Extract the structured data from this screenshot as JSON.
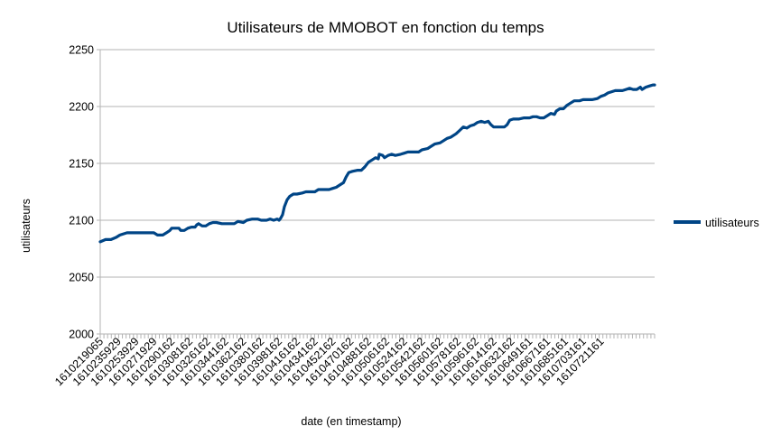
{
  "chart_data": {
    "type": "line",
    "title": "Utilisateurs de MMOBOT en fonction du temps",
    "xlabel": "date (en timestamp)",
    "ylabel": "utilisateurs",
    "ylim": [
      2000,
      2250
    ],
    "yticks": [
      2000,
      2050,
      2100,
      2150,
      2200,
      2250
    ],
    "grid": "horizontal",
    "legend_position": "right",
    "x_tick_labels": [
      "1610219065",
      "1610235929",
      "1610253929",
      "1610271929",
      "1610290162",
      "1610308162",
      "1610326162",
      "1610344162",
      "1610362162",
      "1610380162",
      "1610398162",
      "1610416162",
      "1610434162",
      "1610452162",
      "1610470162",
      "1610488162",
      "1610506162",
      "1610524162",
      "1610542162",
      "1610560162",
      "1610578162",
      "1610596162",
      "1610614162",
      "1610632162",
      "1610649161",
      "1610667161",
      "1610685161",
      "1610703161",
      "1610721161"
    ],
    "series": [
      {
        "name": "utilisateurs",
        "color": "#004586",
        "points": [
          [
            0,
            2081
          ],
          [
            0.3,
            2083
          ],
          [
            0.6,
            2083
          ],
          [
            0.9,
            2085
          ],
          [
            1.1,
            2087
          ],
          [
            1.3,
            2088
          ],
          [
            1.5,
            2089
          ],
          [
            1.8,
            2089
          ],
          [
            2.0,
            2089
          ],
          [
            2.5,
            2089
          ],
          [
            3.0,
            2089
          ],
          [
            3.2,
            2087
          ],
          [
            3.5,
            2087
          ],
          [
            3.7,
            2089
          ],
          [
            3.9,
            2091
          ],
          [
            4.0,
            2093
          ],
          [
            4.2,
            2093
          ],
          [
            4.4,
            2093
          ],
          [
            4.5,
            2091
          ],
          [
            4.7,
            2091
          ],
          [
            4.9,
            2093
          ],
          [
            5.1,
            2094
          ],
          [
            5.3,
            2094
          ],
          [
            5.4,
            2096
          ],
          [
            5.5,
            2097
          ],
          [
            5.7,
            2095
          ],
          [
            5.9,
            2095
          ],
          [
            6.1,
            2097
          ],
          [
            6.3,
            2098
          ],
          [
            6.5,
            2098
          ],
          [
            6.8,
            2097
          ],
          [
            7.2,
            2097
          ],
          [
            7.5,
            2097
          ],
          [
            7.7,
            2099
          ],
          [
            8.0,
            2098
          ],
          [
            8.2,
            2100
          ],
          [
            8.5,
            2101
          ],
          [
            8.8,
            2101
          ],
          [
            9.0,
            2100
          ],
          [
            9.3,
            2100
          ],
          [
            9.5,
            2101
          ],
          [
            9.7,
            2100
          ],
          [
            9.9,
            2101
          ],
          [
            10.0,
            2100
          ],
          [
            10.1,
            2102
          ],
          [
            10.2,
            2105
          ],
          [
            10.3,
            2112
          ],
          [
            10.45,
            2118
          ],
          [
            10.6,
            2121
          ],
          [
            10.8,
            2123
          ],
          [
            11.0,
            2123
          ],
          [
            11.3,
            2124
          ],
          [
            11.5,
            2125
          ],
          [
            11.8,
            2125
          ],
          [
            12.0,
            2125
          ],
          [
            12.2,
            2127
          ],
          [
            12.5,
            2127
          ],
          [
            12.8,
            2127
          ],
          [
            13.0,
            2128
          ],
          [
            13.2,
            2129
          ],
          [
            13.4,
            2131
          ],
          [
            13.6,
            2133
          ],
          [
            13.75,
            2138
          ],
          [
            13.9,
            2142
          ],
          [
            14.1,
            2143
          ],
          [
            14.4,
            2144
          ],
          [
            14.6,
            2144
          ],
          [
            14.8,
            2147
          ],
          [
            15.0,
            2151
          ],
          [
            15.2,
            2153
          ],
          [
            15.4,
            2155
          ],
          [
            15.55,
            2154
          ],
          [
            15.6,
            2158
          ],
          [
            15.8,
            2157
          ],
          [
            15.9,
            2155
          ],
          [
            16.1,
            2157
          ],
          [
            16.3,
            2158
          ],
          [
            16.5,
            2157
          ],
          [
            16.8,
            2158
          ],
          [
            17.0,
            2159
          ],
          [
            17.2,
            2160
          ],
          [
            17.5,
            2160
          ],
          [
            17.8,
            2160
          ],
          [
            18.0,
            2162
          ],
          [
            18.3,
            2163
          ],
          [
            18.5,
            2165
          ],
          [
            18.7,
            2167
          ],
          [
            19.0,
            2168
          ],
          [
            19.2,
            2170
          ],
          [
            19.4,
            2172
          ],
          [
            19.6,
            2173
          ],
          [
            19.9,
            2176
          ],
          [
            20.1,
            2179
          ],
          [
            20.3,
            2182
          ],
          [
            20.5,
            2181
          ],
          [
            20.7,
            2183
          ],
          [
            20.9,
            2184
          ],
          [
            21.1,
            2186
          ],
          [
            21.3,
            2187
          ],
          [
            21.5,
            2186
          ],
          [
            21.7,
            2187
          ],
          [
            21.85,
            2184
          ],
          [
            22.0,
            2182
          ],
          [
            22.3,
            2182
          ],
          [
            22.6,
            2182
          ],
          [
            22.75,
            2184
          ],
          [
            22.9,
            2188
          ],
          [
            23.1,
            2189
          ],
          [
            23.4,
            2189
          ],
          [
            23.7,
            2190
          ],
          [
            24.0,
            2190
          ],
          [
            24.2,
            2191
          ],
          [
            24.4,
            2191
          ],
          [
            24.6,
            2190
          ],
          [
            24.8,
            2190
          ],
          [
            25.0,
            2192
          ],
          [
            25.2,
            2194
          ],
          [
            25.4,
            2193
          ],
          [
            25.5,
            2196
          ],
          [
            25.7,
            2198
          ],
          [
            25.9,
            2198
          ],
          [
            26.1,
            2201
          ],
          [
            26.3,
            2203
          ],
          [
            26.5,
            2205
          ],
          [
            26.8,
            2205
          ],
          [
            27.0,
            2206
          ],
          [
            27.3,
            2206
          ],
          [
            27.5,
            2206
          ],
          [
            27.8,
            2207
          ],
          [
            28.0,
            2209
          ],
          [
            28.2,
            2210
          ],
          [
            28.4,
            2212
          ],
          [
            28.6,
            2213
          ],
          [
            28.8,
            2214
          ],
          [
            29.0,
            2214
          ],
          [
            29.2,
            2214
          ],
          [
            29.4,
            2215
          ],
          [
            29.6,
            2216
          ],
          [
            29.8,
            2215
          ],
          [
            30.0,
            2215
          ],
          [
            30.2,
            2217
          ],
          [
            30.3,
            2215
          ],
          [
            30.5,
            2217
          ],
          [
            30.7,
            2218
          ],
          [
            30.9,
            2219
          ],
          [
            31.0,
            2219
          ]
        ]
      }
    ]
  }
}
